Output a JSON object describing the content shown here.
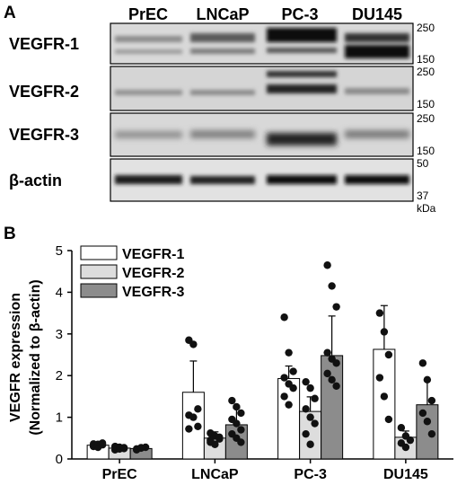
{
  "panel_a": {
    "letter": "A",
    "lanes": [
      "PrEC",
      "LNCaP",
      "PC-3",
      "DU145"
    ],
    "blots": [
      {
        "label": "VEGFR-1",
        "marker_top": "250",
        "marker_bottom": "150"
      },
      {
        "label": "VEGFR-2",
        "marker_top": "250",
        "marker_bottom": "150"
      },
      {
        "label": "VEGFR-3",
        "marker_top": "250",
        "marker_bottom": "150"
      },
      {
        "label": "β-actin",
        "marker_top": "50",
        "marker_bottom": "37"
      }
    ],
    "unit": "kDa"
  },
  "panel_b": {
    "letter": "B"
  },
  "chart_data": {
    "type": "bar",
    "ylabel_line1": "VEGFR expression",
    "ylabel_line2": "(Normalized to β-actin)",
    "ylim": [
      0,
      5
    ],
    "yticks": [
      "0",
      "1",
      "2",
      "3",
      "4",
      "5"
    ],
    "categories": [
      "PrEC",
      "LNCaP",
      "PC-3",
      "DU145"
    ],
    "legend_position": "top-left",
    "series": [
      {
        "name": "VEGFR-1",
        "color": "#ffffff",
        "values": [
          0.33,
          1.6,
          1.93,
          2.63
        ],
        "errors": [
          0.05,
          0.75,
          0.3,
          1.05
        ],
        "points": [
          [
            0.3,
            0.35,
            0.38,
            0.32,
            0.28,
            0.34,
            0.36
          ],
          [
            2.85,
            2.75,
            1.2,
            1.05,
            1.0,
            0.78,
            0.72
          ],
          [
            3.4,
            2.55,
            2.1,
            1.95,
            1.8,
            1.7,
            1.5,
            1.3
          ],
          [
            3.5,
            3.05,
            2.5,
            1.95,
            1.5,
            0.95
          ]
        ]
      },
      {
        "name": "VEGFR-2",
        "color": "#dddddd",
        "values": [
          0.26,
          0.5,
          1.14,
          0.52
        ],
        "errors": [
          0.04,
          0.15,
          0.35,
          0.15
        ],
        "points": [
          [
            0.22,
            0.28,
            0.25,
            0.3,
            0.24,
            0.27
          ],
          [
            0.62,
            0.55,
            0.48,
            0.4,
            0.35,
            0.52,
            0.45
          ],
          [
            1.85,
            1.7,
            1.45,
            1.2,
            1.0,
            0.85,
            0.6,
            0.35
          ],
          [
            0.75,
            0.55,
            0.45,
            0.38,
            0.28
          ]
        ]
      },
      {
        "name": "VEGFR-3",
        "color": "#8c8c8c",
        "values": [
          0.25,
          0.82,
          2.48,
          1.3
        ],
        "errors": [
          0.03,
          0.4,
          0.95,
          0.6
        ],
        "points": [
          [
            0.22,
            0.26,
            0.28,
            0.24,
            0.27
          ],
          [
            1.4,
            1.25,
            1.1,
            0.95,
            0.85,
            0.7,
            0.6,
            0.5,
            0.4
          ],
          [
            4.65,
            4.15,
            3.65,
            2.55,
            2.4,
            2.3,
            2.05,
            1.9,
            1.75
          ],
          [
            2.3,
            1.9,
            1.4,
            1.1,
            0.9,
            0.6
          ]
        ]
      }
    ]
  }
}
